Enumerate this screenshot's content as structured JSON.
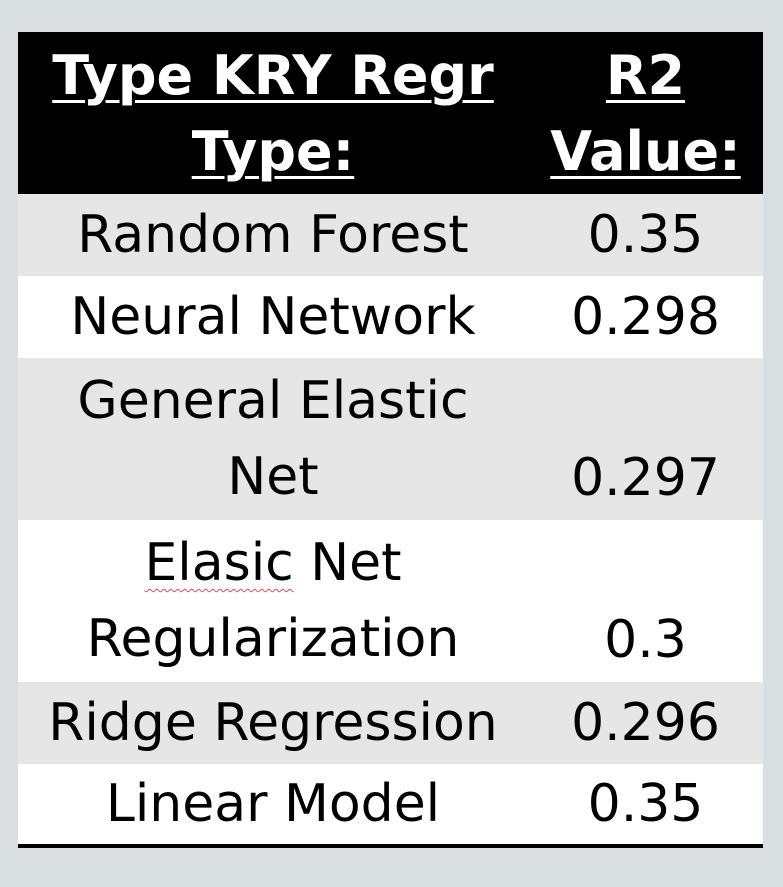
{
  "header": {
    "col1_line1": "Type KRY Regr",
    "col1_line2": "Type:",
    "col2_line1": "R2",
    "col2_line2": "Value:"
  },
  "rows": [
    {
      "type": "Random Forest",
      "r2": "0.35"
    },
    {
      "type": "Neural Network",
      "r2": "0.298"
    },
    {
      "type_line1": "General Elastic",
      "type_line2": "Net",
      "r2": "0.297"
    },
    {
      "type_line1_a": "Elasic",
      "type_line1_b": " Net",
      "type_line2": "Regularization",
      "r2": "0.3"
    },
    {
      "type": "Ridge Regression",
      "r2": "0.296"
    },
    {
      "type": "Linear Model",
      "r2": "0.35"
    }
  ],
  "colors": {
    "header_bg": "#000000",
    "header_text": "#ffffff",
    "shaded_row": "#e6e6e6",
    "plain_row": "#ffffff",
    "page_bg": "#d9dee0"
  }
}
